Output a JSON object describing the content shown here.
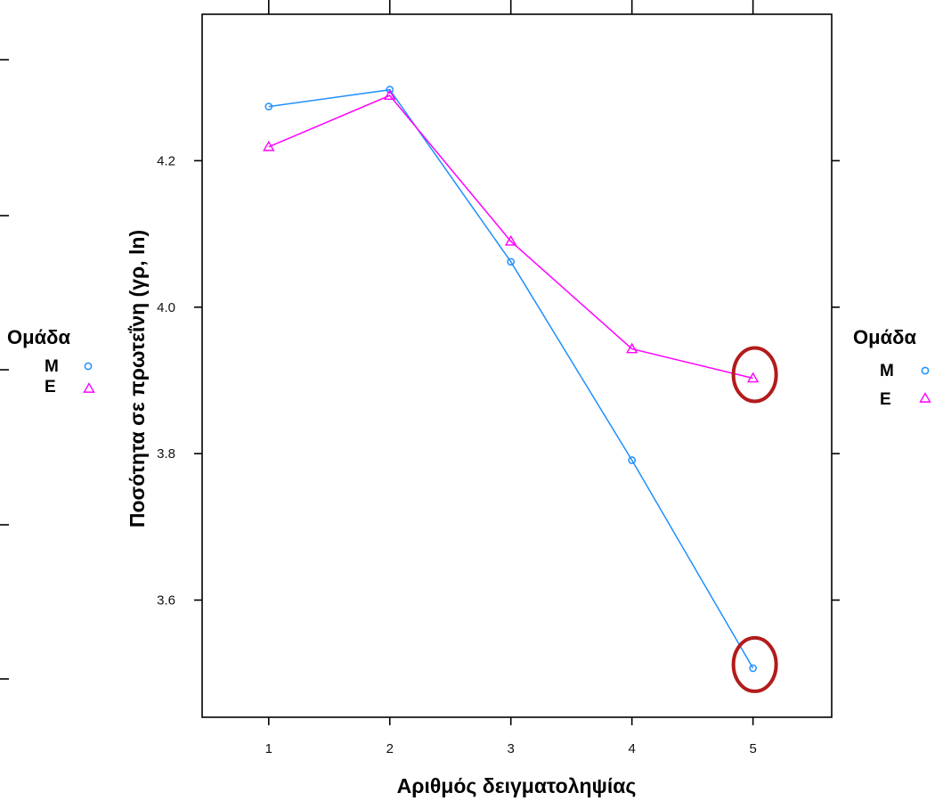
{
  "chart_data": {
    "type": "line",
    "title": "",
    "xlabel": "Αριθμός δειγματοληψίας",
    "ylabel": "Ποσότητα σε πρωτεΐνη (γρ, ln)",
    "x": [
      1,
      2,
      3,
      4,
      5
    ],
    "x_ticks": [
      "1",
      "2",
      "3",
      "4",
      "5"
    ],
    "xlim": [
      0.45,
      5.65
    ],
    "y_ticks": [
      "3.6",
      "3.8",
      "4.0",
      "4.2"
    ],
    "ylim": [
      3.44,
      4.4
    ],
    "grid": false,
    "series": [
      {
        "name": "Μ",
        "marker": "circle",
        "color": "#1E90FF",
        "values": [
          4.274,
          4.297,
          4.062,
          3.791,
          3.507
        ]
      },
      {
        "name": "Ε",
        "marker": "triangle",
        "color": "#FF00FF",
        "values": [
          4.219,
          4.289,
          4.09,
          3.943,
          3.903
        ]
      }
    ],
    "legend": {
      "title": "Ομάδα",
      "placement": "left and right",
      "items": [
        "Μ",
        "Ε"
      ]
    },
    "annotations": [
      {
        "type": "ellipse",
        "x": 5,
        "y": 3.903,
        "color": "#B31B1B"
      },
      {
        "type": "ellipse",
        "x": 5,
        "y": 3.507,
        "color": "#B31B1B"
      }
    ]
  }
}
